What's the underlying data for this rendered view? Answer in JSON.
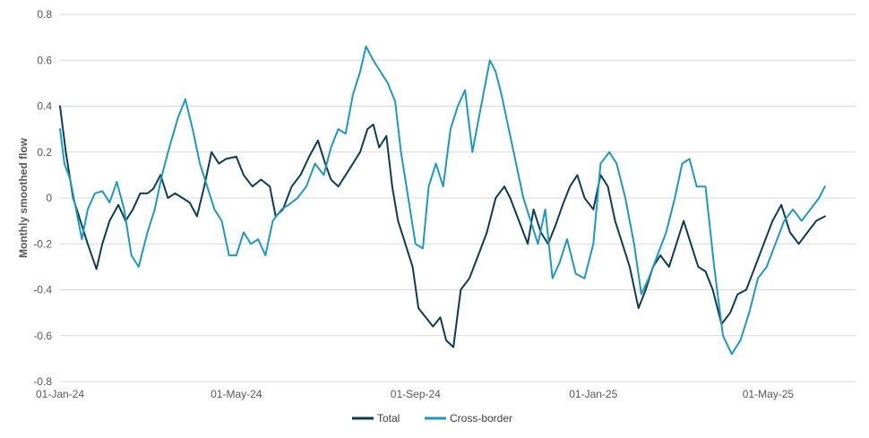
{
  "chart_data": {
    "type": "line",
    "title": "",
    "xlabel": "",
    "ylabel": "Monthly smoothed flow",
    "ylim": [
      -0.8,
      0.8
    ],
    "yticks": [
      0.8,
      0.6,
      0.4,
      0.2,
      0,
      -0.2,
      -0.4,
      -0.6,
      -0.8
    ],
    "ytick_labels": [
      "0.8",
      "0.6",
      "0.4",
      "0.2",
      "0",
      "-0.2",
      "-0.4",
      "-0.6",
      "-0.8"
    ],
    "x_start": "2024-01-01",
    "x_end": "2025-06-30",
    "xticks": [
      "2024-01-01",
      "2024-05-01",
      "2024-09-01",
      "2025-01-01",
      "2025-05-01"
    ],
    "xtick_labels": [
      "01-Jan-24",
      "01-May-24",
      "01-Sep-24",
      "01-Jan-25",
      "01-May-25"
    ],
    "grid": true,
    "legend": "bottom-center",
    "series": [
      {
        "name": "Total",
        "color": "#0d3d56",
        "points": [
          [
            "2024-01-01",
            0.4
          ],
          [
            "2024-01-05",
            0.2
          ],
          [
            "2024-01-10",
            0.0
          ],
          [
            "2024-01-15",
            -0.1
          ],
          [
            "2024-01-20",
            -0.2
          ],
          [
            "2024-01-26",
            -0.31
          ],
          [
            "2024-01-30",
            -0.2
          ],
          [
            "2024-02-04",
            -0.1
          ],
          [
            "2024-02-10",
            -0.03
          ],
          [
            "2024-02-15",
            -0.1
          ],
          [
            "2024-02-20",
            -0.05
          ],
          [
            "2024-02-25",
            0.02
          ],
          [
            "2024-03-01",
            0.02
          ],
          [
            "2024-03-05",
            0.04
          ],
          [
            "2024-03-10",
            0.1
          ],
          [
            "2024-03-15",
            0.0
          ],
          [
            "2024-03-20",
            0.02
          ],
          [
            "2024-03-25",
            0.0
          ],
          [
            "2024-03-30",
            -0.02
          ],
          [
            "2024-04-04",
            -0.08
          ],
          [
            "2024-04-09",
            0.05
          ],
          [
            "2024-04-14",
            0.2
          ],
          [
            "2024-04-19",
            0.15
          ],
          [
            "2024-04-24",
            0.17
          ],
          [
            "2024-05-01",
            0.18
          ],
          [
            "2024-05-06",
            0.1
          ],
          [
            "2024-05-12",
            0.05
          ],
          [
            "2024-05-18",
            0.08
          ],
          [
            "2024-05-24",
            0.05
          ],
          [
            "2024-05-28",
            -0.08
          ],
          [
            "2024-06-02",
            -0.05
          ],
          [
            "2024-06-08",
            0.05
          ],
          [
            "2024-06-14",
            0.1
          ],
          [
            "2024-06-20",
            0.18
          ],
          [
            "2024-06-26",
            0.25
          ],
          [
            "2024-07-01",
            0.15
          ],
          [
            "2024-07-05",
            0.08
          ],
          [
            "2024-07-10",
            0.05
          ],
          [
            "2024-07-15",
            0.1
          ],
          [
            "2024-07-20",
            0.15
          ],
          [
            "2024-07-25",
            0.2
          ],
          [
            "2024-07-30",
            0.3
          ],
          [
            "2024-08-03",
            0.32
          ],
          [
            "2024-08-07",
            0.22
          ],
          [
            "2024-08-12",
            0.27
          ],
          [
            "2024-08-16",
            0.05
          ],
          [
            "2024-08-20",
            -0.1
          ],
          [
            "2024-08-25",
            -0.2
          ],
          [
            "2024-08-30",
            -0.3
          ],
          [
            "2024-09-03",
            -0.48
          ],
          [
            "2024-09-08",
            -0.52
          ],
          [
            "2024-09-13",
            -0.56
          ],
          [
            "2024-09-18",
            -0.52
          ],
          [
            "2024-09-22",
            -0.62
          ],
          [
            "2024-09-27",
            -0.65
          ],
          [
            "2024-10-02",
            -0.4
          ],
          [
            "2024-10-08",
            -0.35
          ],
          [
            "2024-10-14",
            -0.25
          ],
          [
            "2024-10-20",
            -0.15
          ],
          [
            "2024-10-26",
            0.0
          ],
          [
            "2024-11-01",
            0.05
          ],
          [
            "2024-11-05",
            0.0
          ],
          [
            "2024-11-11",
            -0.1
          ],
          [
            "2024-11-17",
            -0.2
          ],
          [
            "2024-11-21",
            -0.05
          ],
          [
            "2024-11-26",
            -0.15
          ],
          [
            "2024-12-01",
            -0.2
          ],
          [
            "2024-12-06",
            -0.12
          ],
          [
            "2024-12-11",
            -0.03
          ],
          [
            "2024-12-16",
            0.05
          ],
          [
            "2024-12-21",
            0.1
          ],
          [
            "2024-12-26",
            0.0
          ],
          [
            "2025-01-01",
            -0.05
          ],
          [
            "2025-01-06",
            0.1
          ],
          [
            "2025-01-11",
            0.05
          ],
          [
            "2025-01-16",
            -0.1
          ],
          [
            "2025-01-21",
            -0.2
          ],
          [
            "2025-01-26",
            -0.3
          ],
          [
            "2025-02-01",
            -0.48
          ],
          [
            "2025-02-06",
            -0.4
          ],
          [
            "2025-02-11",
            -0.3
          ],
          [
            "2025-02-16",
            -0.25
          ],
          [
            "2025-02-22",
            -0.3
          ],
          [
            "2025-02-27",
            -0.2
          ],
          [
            "2025-03-04",
            -0.1
          ],
          [
            "2025-03-09",
            -0.2
          ],
          [
            "2025-03-14",
            -0.3
          ],
          [
            "2025-03-19",
            -0.32
          ],
          [
            "2025-03-24",
            -0.4
          ],
          [
            "2025-03-30",
            -0.55
          ],
          [
            "2025-04-05",
            -0.5
          ],
          [
            "2025-04-10",
            -0.42
          ],
          [
            "2025-04-16",
            -0.4
          ],
          [
            "2025-04-22",
            -0.3
          ],
          [
            "2025-04-28",
            -0.2
          ],
          [
            "2025-05-04",
            -0.1
          ],
          [
            "2025-05-10",
            -0.03
          ],
          [
            "2025-05-16",
            -0.15
          ],
          [
            "2025-05-22",
            -0.2
          ],
          [
            "2025-05-28",
            -0.15
          ],
          [
            "2025-06-03",
            -0.1
          ],
          [
            "2025-06-09",
            -0.08
          ]
        ]
      },
      {
        "name": "Cross-border",
        "color": "#1a9ac4",
        "points": [
          [
            "2024-01-01",
            0.3
          ],
          [
            "2024-01-04",
            0.15
          ],
          [
            "2024-01-08",
            0.08
          ],
          [
            "2024-01-12",
            -0.05
          ],
          [
            "2024-01-16",
            -0.18
          ],
          [
            "2024-01-20",
            -0.05
          ],
          [
            "2024-01-25",
            0.02
          ],
          [
            "2024-01-30",
            0.03
          ],
          [
            "2024-02-04",
            -0.02
          ],
          [
            "2024-02-09",
            0.07
          ],
          [
            "2024-02-14",
            -0.05
          ],
          [
            "2024-02-19",
            -0.25
          ],
          [
            "2024-02-24",
            -0.3
          ],
          [
            "2024-03-01",
            -0.15
          ],
          [
            "2024-03-06",
            -0.05
          ],
          [
            "2024-03-11",
            0.1
          ],
          [
            "2024-03-16",
            0.22
          ],
          [
            "2024-03-22",
            0.35
          ],
          [
            "2024-03-27",
            0.43
          ],
          [
            "2024-04-01",
            0.3
          ],
          [
            "2024-04-06",
            0.15
          ],
          [
            "2024-04-11",
            0.05
          ],
          [
            "2024-04-16",
            -0.05
          ],
          [
            "2024-04-21",
            -0.1
          ],
          [
            "2024-04-26",
            -0.25
          ],
          [
            "2024-05-01",
            -0.25
          ],
          [
            "2024-05-06",
            -0.15
          ],
          [
            "2024-05-11",
            -0.2
          ],
          [
            "2024-05-16",
            -0.18
          ],
          [
            "2024-05-21",
            -0.25
          ],
          [
            "2024-05-26",
            -0.1
          ],
          [
            "2024-06-01",
            -0.05
          ],
          [
            "2024-06-06",
            -0.03
          ],
          [
            "2024-06-12",
            0.0
          ],
          [
            "2024-06-18",
            0.05
          ],
          [
            "2024-06-24",
            0.15
          ],
          [
            "2024-06-30",
            0.1
          ],
          [
            "2024-07-05",
            0.22
          ],
          [
            "2024-07-10",
            0.3
          ],
          [
            "2024-07-15",
            0.28
          ],
          [
            "2024-07-20",
            0.45
          ],
          [
            "2024-07-25",
            0.55
          ],
          [
            "2024-07-29",
            0.66
          ],
          [
            "2024-08-03",
            0.6
          ],
          [
            "2024-08-08",
            0.55
          ],
          [
            "2024-08-13",
            0.5
          ],
          [
            "2024-08-18",
            0.42
          ],
          [
            "2024-08-22",
            0.2
          ],
          [
            "2024-08-27",
            0.0
          ],
          [
            "2024-09-01",
            -0.2
          ],
          [
            "2024-09-06",
            -0.22
          ],
          [
            "2024-09-10",
            0.05
          ],
          [
            "2024-09-15",
            0.15
          ],
          [
            "2024-09-20",
            0.05
          ],
          [
            "2024-09-25",
            0.3
          ],
          [
            "2024-09-30",
            0.4
          ],
          [
            "2024-10-05",
            0.47
          ],
          [
            "2024-10-10",
            0.2
          ],
          [
            "2024-10-16",
            0.4
          ],
          [
            "2024-10-22",
            0.6
          ],
          [
            "2024-10-26",
            0.55
          ],
          [
            "2024-10-30",
            0.45
          ],
          [
            "2024-11-04",
            0.3
          ],
          [
            "2024-11-09",
            0.15
          ],
          [
            "2024-11-14",
            0.0
          ],
          [
            "2024-11-19",
            -0.1
          ],
          [
            "2024-11-24",
            -0.2
          ],
          [
            "2024-11-29",
            -0.05
          ],
          [
            "2024-12-04",
            -0.35
          ],
          [
            "2024-12-09",
            -0.28
          ],
          [
            "2024-12-14",
            -0.18
          ],
          [
            "2024-12-20",
            -0.33
          ],
          [
            "2024-12-26",
            -0.35
          ],
          [
            "2025-01-01",
            -0.2
          ],
          [
            "2025-01-06",
            0.15
          ],
          [
            "2025-01-12",
            0.2
          ],
          [
            "2025-01-17",
            0.15
          ],
          [
            "2025-01-23",
            0.0
          ],
          [
            "2025-01-29",
            -0.2
          ],
          [
            "2025-02-03",
            -0.42
          ],
          [
            "2025-02-08",
            -0.35
          ],
          [
            "2025-02-14",
            -0.25
          ],
          [
            "2025-02-20",
            -0.15
          ],
          [
            "2025-02-26",
            0.0
          ],
          [
            "2025-03-03",
            0.15
          ],
          [
            "2025-03-08",
            0.17
          ],
          [
            "2025-03-13",
            0.05
          ],
          [
            "2025-03-19",
            0.05
          ],
          [
            "2025-03-25",
            -0.3
          ],
          [
            "2025-03-31",
            -0.6
          ],
          [
            "2025-04-06",
            -0.68
          ],
          [
            "2025-04-12",
            -0.62
          ],
          [
            "2025-04-18",
            -0.5
          ],
          [
            "2025-04-24",
            -0.35
          ],
          [
            "2025-04-30",
            -0.3
          ],
          [
            "2025-05-06",
            -0.2
          ],
          [
            "2025-05-12",
            -0.1
          ],
          [
            "2025-05-18",
            -0.05
          ],
          [
            "2025-05-24",
            -0.1
          ],
          [
            "2025-05-30",
            -0.05
          ],
          [
            "2025-06-05",
            0.0
          ],
          [
            "2025-06-09",
            0.05
          ]
        ]
      }
    ]
  }
}
